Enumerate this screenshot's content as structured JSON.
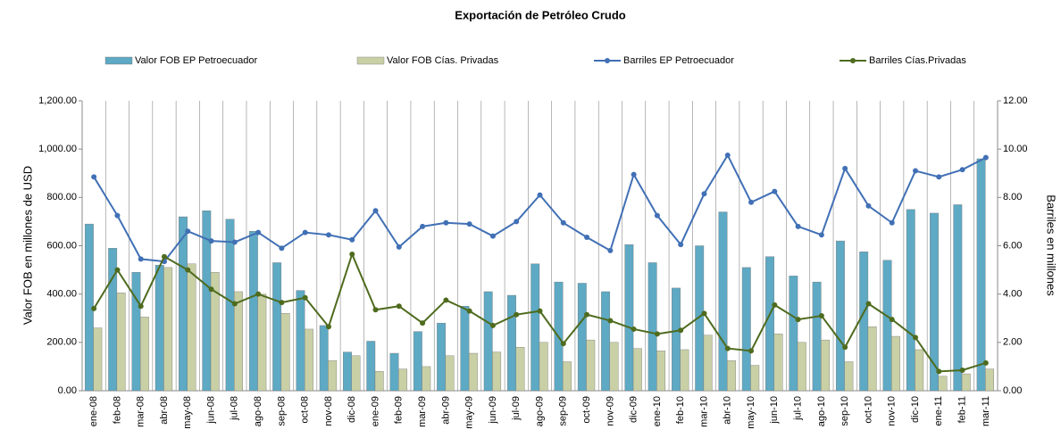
{
  "chart_data": {
    "type": "bar_line",
    "title": "Exportación de Petróleo Crudo",
    "y_label": "Valor FOB en millones de USD",
    "y2_label": "Barriles en millones",
    "categories": [
      "ene-08",
      "feb-08",
      "mar-08",
      "abr-08",
      "may-08",
      "jun-08",
      "jul-08",
      "ago-08",
      "sep-08",
      "oct-08",
      "nov-08",
      "dic-08",
      "ene-09",
      "feb-09",
      "mar-09",
      "abr-09",
      "may-09",
      "jun-09",
      "jul-09",
      "ago-09",
      "sep-09",
      "oct-09",
      "nov-09",
      "dic-09",
      "ene-10",
      "feb-10",
      "mar-10",
      "abr-10",
      "may-10",
      "jun-10",
      "jul-10",
      "ago-10",
      "sep-10",
      "oct-10",
      "nov-10",
      "dic-10",
      "ene-11",
      "feb-11",
      "mar-11"
    ],
    "series": [
      {
        "name": "Valor FOB EP Petroecuador",
        "kind": "bar",
        "color": "#5ea9c4",
        "values": [
          690,
          590,
          490,
          520,
          720,
          745,
          710,
          660,
          530,
          415,
          270,
          160,
          205,
          155,
          245,
          280,
          350,
          410,
          395,
          525,
          450,
          445,
          410,
          605,
          530,
          425,
          600,
          740,
          510,
          555,
          475,
          450,
          620,
          575,
          540,
          750,
          735,
          770,
          960
        ]
      },
      {
        "name": "Valor FOB Cías. Privadas",
        "kind": "bar",
        "color": "#c9d0a6",
        "values": [
          260,
          405,
          305,
          510,
          525,
          490,
          410,
          400,
          320,
          255,
          125,
          145,
          80,
          90,
          100,
          145,
          155,
          160,
          180,
          200,
          120,
          210,
          200,
          175,
          165,
          170,
          230,
          125,
          105,
          235,
          200,
          210,
          120,
          265,
          225,
          170,
          60,
          70,
          90
        ]
      },
      {
        "name": "Barriles EP Petroecuador",
        "kind": "line",
        "axis": "y2",
        "color": "#4170b5",
        "values": [
          8.85,
          7.25,
          5.45,
          5.35,
          6.6,
          6.2,
          6.15,
          6.55,
          5.9,
          6.55,
          6.45,
          6.25,
          7.45,
          5.95,
          6.8,
          6.95,
          6.9,
          6.4,
          7.0,
          8.1,
          6.95,
          6.35,
          5.8,
          8.95,
          7.25,
          6.05,
          8.15,
          9.75,
          7.8,
          8.25,
          6.8,
          6.45,
          9.2,
          7.65,
          6.95,
          9.1,
          8.85,
          9.15,
          9.65
        ]
      },
      {
        "name": "Barriles Cías.Privadas",
        "kind": "line",
        "axis": "y2",
        "color": "#4e6b1e",
        "values": [
          3.4,
          5.0,
          3.5,
          5.55,
          5.0,
          4.2,
          3.6,
          4.0,
          3.65,
          3.85,
          2.65,
          5.65,
          3.35,
          3.5,
          2.8,
          3.75,
          3.3,
          2.7,
          3.15,
          3.3,
          1.95,
          3.15,
          2.9,
          2.55,
          2.35,
          2.5,
          3.2,
          1.75,
          1.65,
          3.55,
          2.95,
          3.1,
          1.8,
          3.6,
          2.95,
          2.2,
          0.8,
          0.85,
          1.15
        ]
      }
    ],
    "ylim": [
      0,
      1200
    ],
    "yticks": [
      {
        "value": 0,
        "label": "0.00"
      },
      {
        "value": 200,
        "label": "200.00"
      },
      {
        "value": 400,
        "label": "400.00"
      },
      {
        "value": 600,
        "label": "600.00"
      },
      {
        "value": 800,
        "label": "800.00"
      },
      {
        "value": 1000,
        "label": "1,000.00"
      },
      {
        "value": 1200,
        "label": "1,200.00"
      }
    ],
    "y2lim": [
      0,
      12
    ],
    "y2ticks": [
      {
        "value": 0,
        "label": "0.00"
      },
      {
        "value": 2,
        "label": "2.00"
      },
      {
        "value": 4,
        "label": "4.00"
      },
      {
        "value": 6,
        "label": "6.00"
      },
      {
        "value": 8,
        "label": "8.00"
      },
      {
        "value": 10,
        "label": "10.00"
      },
      {
        "value": 12,
        "label": "12.00"
      }
    ],
    "grid": true,
    "legend": "top"
  }
}
